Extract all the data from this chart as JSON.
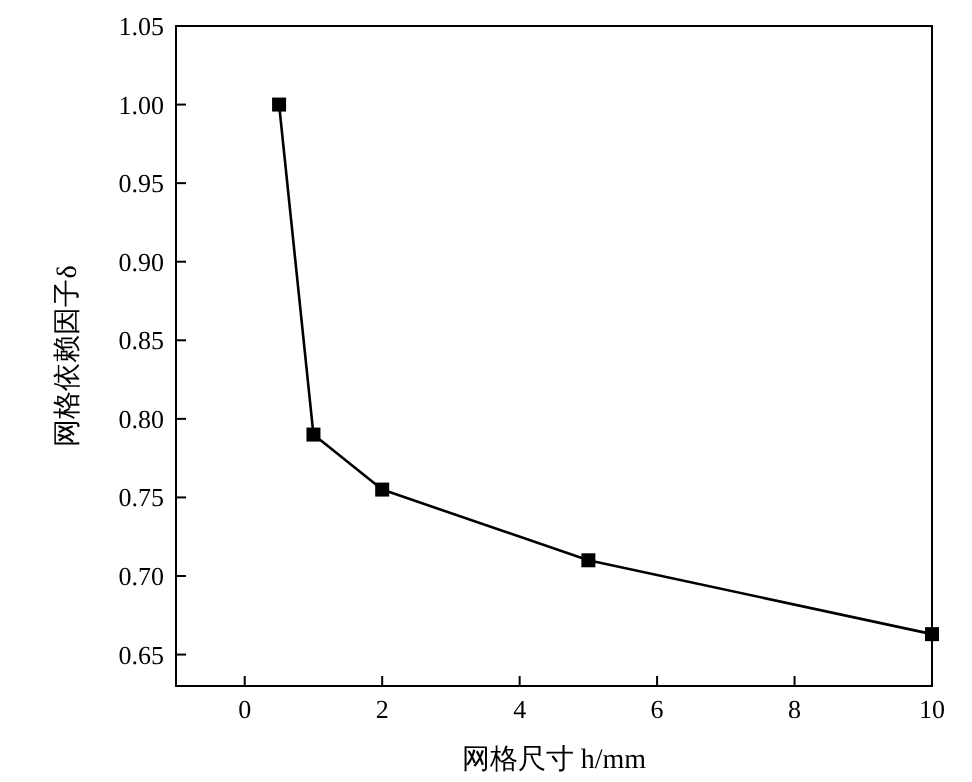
{
  "chart_data": {
    "type": "line",
    "xlabel": "网格尺寸 h/mm",
    "ylabel": "网格依赖因子δ",
    "x": [
      0.5,
      1,
      2,
      5,
      10
    ],
    "series": [
      {
        "color": "#000000",
        "values": [
          1.0,
          0.79,
          0.755,
          0.71,
          0.663
        ]
      }
    ],
    "xlim": [
      -1,
      10
    ],
    "xticks": [
      0,
      2,
      4,
      6,
      8,
      10
    ],
    "ylim": [
      0.63,
      1.05
    ],
    "yticks": [
      0.65,
      {
        "value": 0.7,
        "label": "0.70"
      },
      0.75,
      {
        "value": 0.8,
        "label": "0.80"
      },
      0.85,
      {
        "value": 0.9,
        "label": "0.90"
      },
      0.95,
      {
        "value": 1,
        "label": "1.00"
      },
      1.05
    ],
    "marker": "square",
    "line_style": "solid",
    "grid": false
  }
}
